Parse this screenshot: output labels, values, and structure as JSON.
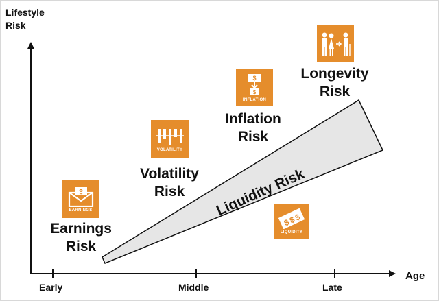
{
  "axes": {
    "y_label_line1": "Lifestyle",
    "y_label_line2": "Risk",
    "x_label": "Age",
    "ticks": [
      "Early",
      "Middle",
      "Late"
    ]
  },
  "risks": {
    "earnings": {
      "line1": "Earnings",
      "line2": "Risk",
      "icon_caption": "EARNINGS",
      "icon": "envelope-money-icon"
    },
    "volatility": {
      "line1": "Volatility",
      "line2": "Risk",
      "icon_caption": "VOLATILITY",
      "icon": "bar-chart-icon"
    },
    "inflation": {
      "line1": "Inflation",
      "line2": "Risk",
      "icon_caption": "INFLATION",
      "icon": "money-arrow-icon"
    },
    "longevity": {
      "line1": "Longevity",
      "line2": "Risk",
      "icon": "people-aging-icon"
    },
    "liquidity": {
      "label": "Liquidity Risk",
      "icon_caption": "LIQUIDITY",
      "icon": "dollar-cash-icon"
    }
  },
  "colors": {
    "icon_bg": "#e58d2c",
    "wedge_fill": "#e6e6e6",
    "axis": "#111111"
  }
}
